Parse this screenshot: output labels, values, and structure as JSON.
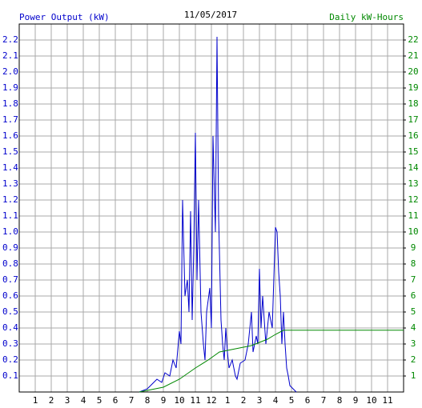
{
  "chart_data": {
    "type": "line",
    "title": "11/05/2017",
    "y_label": "Power Output (kW)",
    "y2_label": "Daily kW-Hours",
    "xlim": [
      0,
      24
    ],
    "xticks": [
      1,
      2,
      3,
      4,
      5,
      6,
      7,
      8,
      9,
      10,
      11,
      12,
      {
        "value": 13,
        "label": "1"
      },
      {
        "value": 14,
        "label": "2"
      },
      {
        "value": 15,
        "label": "3"
      },
      {
        "value": 16,
        "label": "4"
      },
      {
        "value": 17,
        "label": "5"
      },
      {
        "value": 18,
        "label": "6"
      },
      {
        "value": 19,
        "label": "7"
      },
      {
        "value": 20,
        "label": "8"
      },
      {
        "value": 21,
        "label": "9"
      },
      {
        "value": 22,
        "label": "10"
      },
      {
        "value": 23,
        "label": "11"
      }
    ],
    "ylim": [
      0,
      2.3
    ],
    "yticks": [
      0.1,
      0.2,
      0.3,
      0.4,
      0.5,
      0.6,
      0.7,
      0.8,
      0.9,
      {
        "value": 1,
        "label": "1.0"
      },
      1.1,
      1.2,
      1.3,
      1.4,
      1.5,
      1.6,
      1.7,
      1.8,
      1.9,
      {
        "value": 2,
        "label": "2.0"
      },
      2.1,
      2.2
    ],
    "y2lim": [
      0,
      23
    ],
    "y2ticks": [
      1,
      2,
      3,
      4,
      5,
      6,
      7,
      8,
      9,
      10,
      11,
      12,
      13,
      14,
      15,
      16,
      17,
      18,
      19,
      20,
      21,
      22
    ],
    "grid": true,
    "series": [
      {
        "name": "Power Output (kW)",
        "color": "#0000cc",
        "x": [
          7.5,
          8.0,
          8.3,
          8.6,
          8.9,
          9.1,
          9.4,
          9.6,
          9.8,
          10.0,
          10.1,
          10.2,
          10.35,
          10.5,
          10.6,
          10.7,
          10.8,
          10.9,
          11.0,
          11.1,
          11.2,
          11.35,
          11.5,
          11.6,
          11.7,
          11.9,
          12.0,
          12.1,
          12.25,
          12.35,
          12.45,
          12.6,
          12.7,
          12.8,
          12.9,
          13.0,
          13.1,
          13.3,
          13.5,
          13.6,
          13.8,
          14.1,
          14.3,
          14.5,
          14.6,
          14.8,
          14.9,
          15.0,
          15.1,
          15.2,
          15.4,
          15.6,
          15.8,
          16.0,
          16.1,
          16.2,
          16.3,
          16.4,
          16.5,
          16.6,
          16.7,
          16.8,
          16.9,
          17.2,
          17.3
        ],
        "values": [
          0,
          0.02,
          0.05,
          0.08,
          0.06,
          0.12,
          0.1,
          0.2,
          0.15,
          0.38,
          0.3,
          1.2,
          0.6,
          0.7,
          0.5,
          1.13,
          0.45,
          0.9,
          1.62,
          0.7,
          1.2,
          0.5,
          0.3,
          0.2,
          0.5,
          0.65,
          0.4,
          1.6,
          1.0,
          2.22,
          1.1,
          0.45,
          0.3,
          0.2,
          0.4,
          0.25,
          0.15,
          0.2,
          0.1,
          0.08,
          0.18,
          0.2,
          0.3,
          0.5,
          0.25,
          0.35,
          0.3,
          0.77,
          0.4,
          0.6,
          0.3,
          0.5,
          0.4,
          1.03,
          1.0,
          0.75,
          0.6,
          0.3,
          0.5,
          0.3,
          0.15,
          0.1,
          0.04,
          0.01,
          0
        ]
      },
      {
        "name": "Daily kW-Hours",
        "color": "#008800",
        "axis": "y2",
        "x": [
          7.5,
          9,
          10,
          11,
          11.8,
          12.5,
          13.5,
          14.5,
          15.5,
          16,
          16.5,
          17,
          24
        ],
        "values": [
          0,
          0.3,
          0.8,
          1.5,
          2.0,
          2.5,
          2.7,
          2.9,
          3.3,
          3.6,
          3.86,
          3.86,
          3.86
        ]
      }
    ]
  }
}
